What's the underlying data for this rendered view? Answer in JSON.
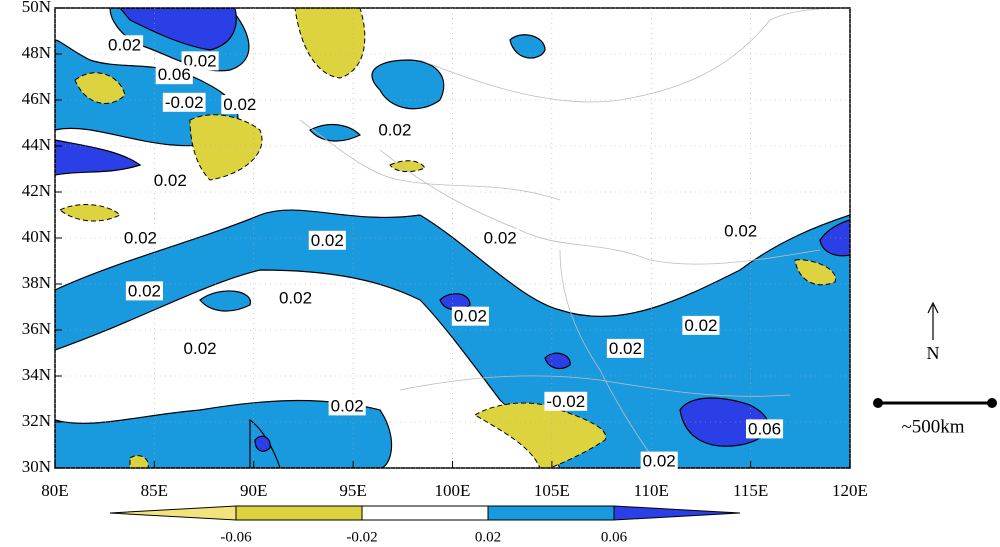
{
  "chart_data": {
    "type": "map",
    "xlim": [
      80,
      120
    ],
    "ylim": [
      30,
      50
    ],
    "xticks": [
      {
        "value": 80,
        "label": "80E"
      },
      {
        "value": 85,
        "label": "85E"
      },
      {
        "value": 90,
        "label": "90E"
      },
      {
        "value": 95,
        "label": "95E"
      },
      {
        "value": 100,
        "label": "100E"
      },
      {
        "value": 105,
        "label": "105E"
      },
      {
        "value": 110,
        "label": "110E"
      },
      {
        "value": 115,
        "label": "115E"
      },
      {
        "value": 120,
        "label": "120E"
      }
    ],
    "yticks": [
      {
        "value": 30,
        "label": "30N"
      },
      {
        "value": 32,
        "label": "32N"
      },
      {
        "value": 34,
        "label": "34N"
      },
      {
        "value": 36,
        "label": "36N"
      },
      {
        "value": 38,
        "label": "38N"
      },
      {
        "value": 40,
        "label": "40N"
      },
      {
        "value": 42,
        "label": "42N"
      },
      {
        "value": 44,
        "label": "44N"
      },
      {
        "value": 46,
        "label": "46N"
      },
      {
        "value": 48,
        "label": "48N"
      },
      {
        "value": 50,
        "label": "50N"
      }
    ],
    "grid": true,
    "contour_labels": [
      {
        "lon": 83.5,
        "lat": 48.4,
        "value": 0.02
      },
      {
        "lon": 87.3,
        "lat": 47.7,
        "value": 0.02
      },
      {
        "lon": 86.0,
        "lat": 47.1,
        "value": 0.06
      },
      {
        "lon": 86.5,
        "lat": 45.9,
        "value": -0.02
      },
      {
        "lon": 89.3,
        "lat": 45.8,
        "value": 0.02
      },
      {
        "lon": 97.1,
        "lat": 44.7,
        "value": 0.02
      },
      {
        "lon": 85.8,
        "lat": 42.5,
        "value": 0.02
      },
      {
        "lon": 84.3,
        "lat": 40.0,
        "value": 0.02
      },
      {
        "lon": 93.7,
        "lat": 39.9,
        "value": 0.02
      },
      {
        "lon": 102.4,
        "lat": 40.0,
        "value": 0.02
      },
      {
        "lon": 114.5,
        "lat": 40.3,
        "value": 0.02
      },
      {
        "lon": 84.5,
        "lat": 37.7,
        "value": 0.02
      },
      {
        "lon": 92.1,
        "lat": 37.4,
        "value": 0.02
      },
      {
        "lon": 100.9,
        "lat": 36.6,
        "value": 0.02
      },
      {
        "lon": 112.5,
        "lat": 36.2,
        "value": 0.02
      },
      {
        "lon": 87.3,
        "lat": 35.2,
        "value": 0.02
      },
      {
        "lon": 108.7,
        "lat": 35.2,
        "value": 0.02
      },
      {
        "lon": 94.7,
        "lat": 32.7,
        "value": 0.02
      },
      {
        "lon": 105.7,
        "lat": 32.9,
        "value": -0.02
      },
      {
        "lon": 115.7,
        "lat": 31.7,
        "value": 0.06
      },
      {
        "lon": 110.4,
        "lat": 30.3,
        "value": 0.02
      }
    ],
    "colorbar": {
      "levels": [
        -0.06,
        -0.02,
        0.02,
        0.06
      ],
      "colors": [
        "#f3e37e",
        "#dcd33e",
        "#ffffff",
        "#1a9ade",
        "#2b3fe6"
      ]
    },
    "north_label": "N",
    "scale_label": "~500km"
  }
}
